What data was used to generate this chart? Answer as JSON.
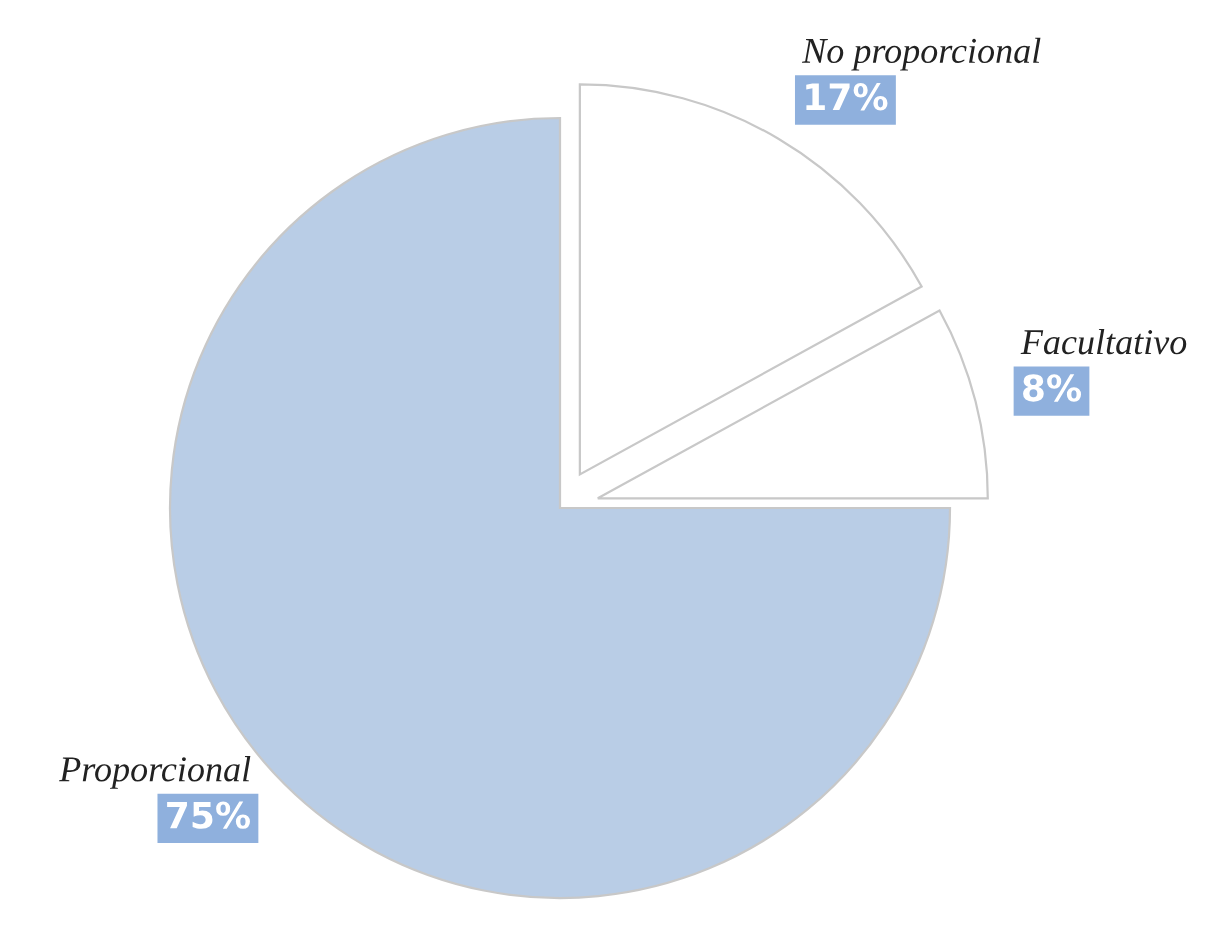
{
  "chart_data": {
    "type": "pie",
    "categories": [
      "Proporcional",
      "Facultativo",
      "No proporcional"
    ],
    "values": [
      75,
      8,
      17
    ],
    "value_labels": [
      "75%",
      "8%",
      "17%"
    ],
    "colors": [
      "#b9cde6",
      "#ffffff",
      "#ffffff"
    ],
    "legend": false
  }
}
